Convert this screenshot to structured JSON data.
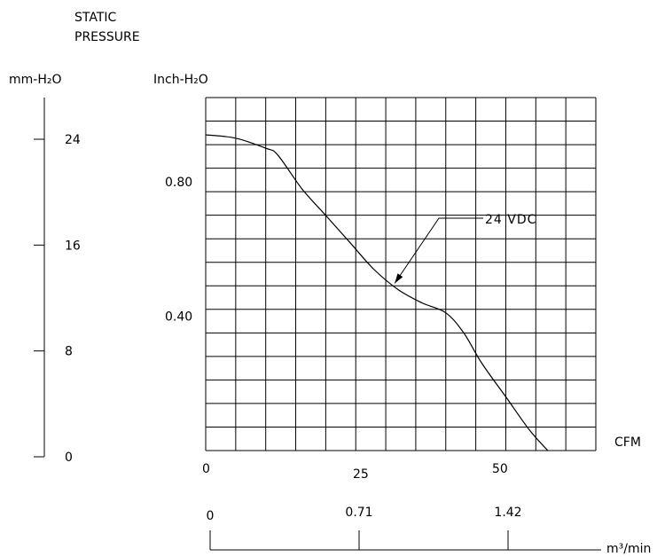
{
  "chart_data": {
    "type": "line",
    "title_lines": [
      "STATIC",
      "PRESSURE"
    ],
    "ylabel_left": "mm-H₂O",
    "ylabel_right": "Inch-H₂O",
    "xlabel_top": "CFM",
    "xlabel_bottom": "m³/min",
    "mm_ticks": [
      {
        "label": "24",
        "value": 24
      },
      {
        "label": "16",
        "value": 16
      },
      {
        "label": "8",
        "value": 8
      },
      {
        "label": "0",
        "value": 0
      }
    ],
    "inch_ticks": [
      {
        "label": "0.80",
        "value": 0.8
      },
      {
        "label": "0.40",
        "value": 0.4
      }
    ],
    "cfm_ticks": [
      {
        "label": "0",
        "value": 0
      },
      {
        "label": "25",
        "value": 25
      },
      {
        "label": "50",
        "value": 50
      }
    ],
    "m3_ticks": [
      {
        "label": "0",
        "value": 0
      },
      {
        "label": "0.71",
        "value": 0.71
      },
      {
        "label": "1.42",
        "value": 1.42
      }
    ],
    "xlim_cfm": [
      0,
      65
    ],
    "ylim_inch": [
      0,
      1.05
    ],
    "grid": true,
    "series": [
      {
        "name": "24 VDC",
        "x": [
          0,
          5,
          10,
          12,
          16,
          20,
          24,
          28,
          32,
          36,
          40,
          43,
          46,
          50,
          54,
          57
        ],
        "y": [
          0.94,
          0.93,
          0.9,
          0.88,
          0.78,
          0.7,
          0.62,
          0.54,
          0.48,
          0.44,
          0.41,
          0.35,
          0.26,
          0.16,
          0.06,
          0.0
        ]
      }
    ],
    "annotations": [
      {
        "text": "24 VDC",
        "series": "24 VDC",
        "point_cfm": 31.5
      }
    ]
  }
}
